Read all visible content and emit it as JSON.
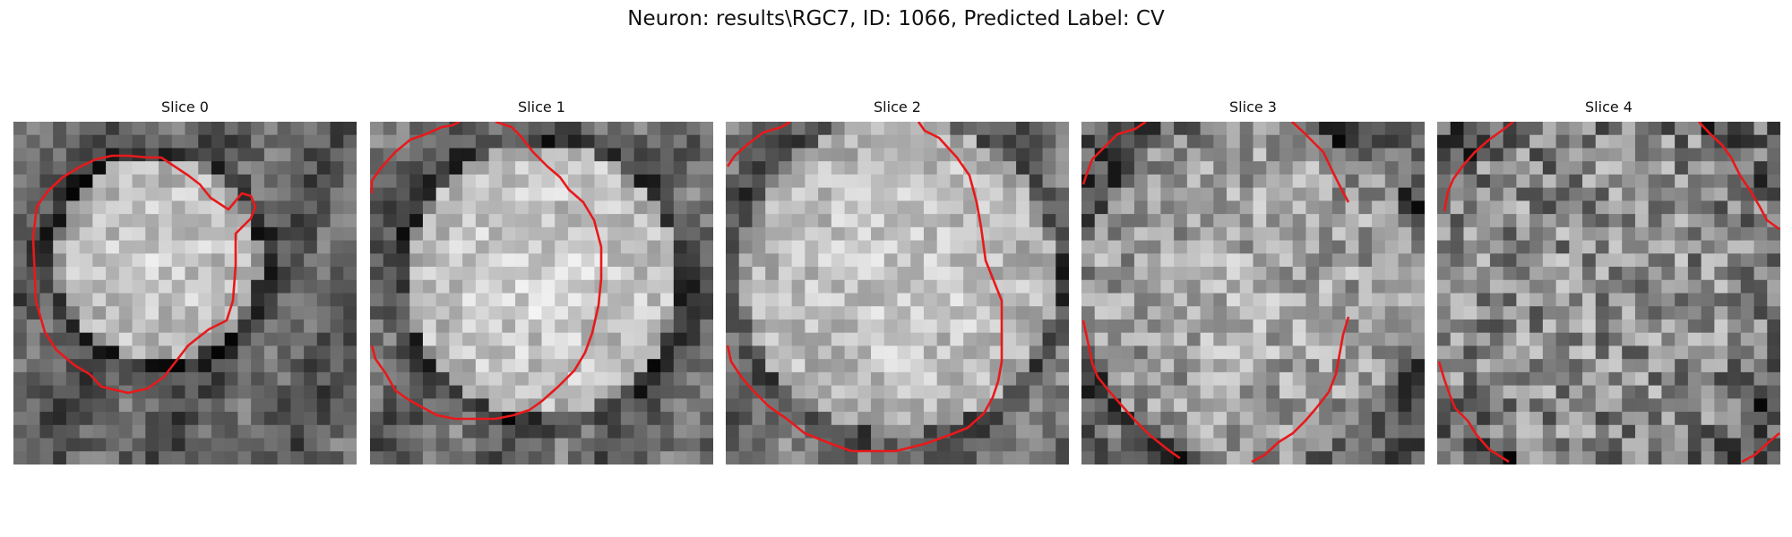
{
  "figure": {
    "title": "Neuron: results\\RGC7, ID: 1066, Predicted Label: CV"
  },
  "panels": [
    {
      "title": "Slice 0"
    },
    {
      "title": "Slice 1"
    },
    {
      "title": "Slice 2"
    },
    {
      "title": "Slice 3"
    },
    {
      "title": "Slice 4"
    }
  ],
  "colors": {
    "contour": "#e8191b",
    "background": "#ffffff"
  },
  "image": {
    "grid_cells": 26,
    "colormap": "grayscale"
  }
}
